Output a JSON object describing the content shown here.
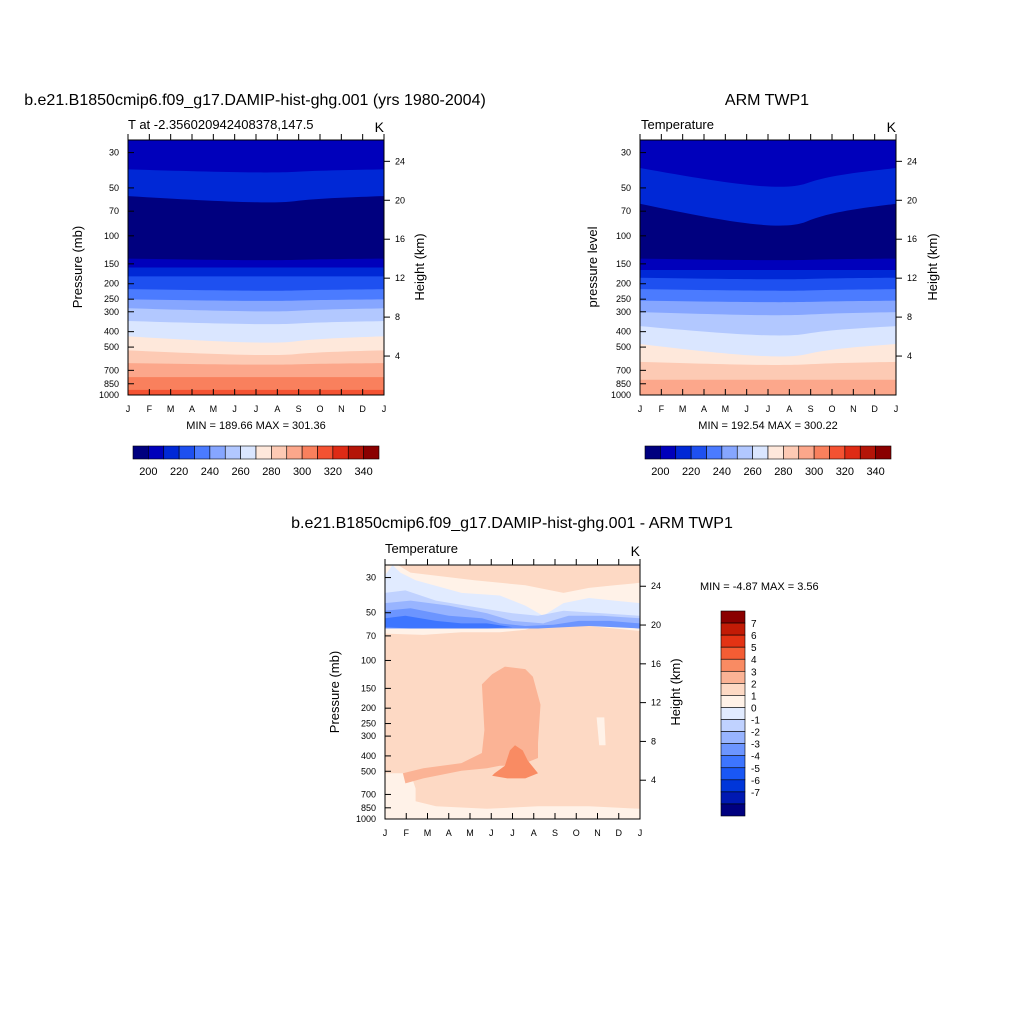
{
  "palette": {
    "temp_colors": [
      "#00007f",
      "#0000bb",
      "#0028d6",
      "#1e50f0",
      "#4b7bff",
      "#86a6ff",
      "#b2c8ff",
      "#dae6ff",
      "#fee8db",
      "#fdcab4",
      "#fca78b",
      "#f9805d",
      "#f45232",
      "#de2b15",
      "#b41508",
      "#8a0000"
    ],
    "diff_colors": [
      "#00007f",
      "#0019b2",
      "#0036d9",
      "#1957f5",
      "#3d75ff",
      "#6c95ff",
      "#98b4ff",
      "#c0d2ff",
      "#e1ebff",
      "#fff2e8",
      "#fdd9c4",
      "#fbb395",
      "#f98b63",
      "#f45d34",
      "#e33314",
      "#c21b06",
      "#8a0000"
    ]
  },
  "chart_data": [
    {
      "type": "heatmap",
      "panel": "model",
      "title": "b.e21.B1850cmip6.f09_g17.DAMIP-hist-ghg.001 (yrs 1980-2004)",
      "subtitle_left": "T at -2.356020942408378,147.5",
      "subtitle_right": "K",
      "ylabel": "Pressure (mb)",
      "ylabel_right": "Height (km)",
      "months": [
        "J",
        "F",
        "M",
        "A",
        "M",
        "J",
        "J",
        "A",
        "S",
        "O",
        "N",
        "D",
        "J"
      ],
      "pressure_ticks": [
        30,
        50,
        70,
        100,
        150,
        200,
        250,
        300,
        400,
        500,
        700,
        850,
        1000
      ],
      "height_ticks": [
        4,
        8,
        12,
        16,
        20,
        24
      ],
      "ylim": [
        25,
        1000
      ],
      "stats": "MIN = 189.66 MAX = 301.36",
      "colorbar_labels": [
        "200",
        "220",
        "240",
        "260",
        "280",
        "300",
        "320",
        "340"
      ],
      "levels": [
        [
          0.0,
          0.0,
          1
        ],
        [
          0.115,
          0.125,
          2
        ],
        [
          0.22,
          0.24,
          0
        ],
        [
          0.465,
          0.47,
          1
        ],
        [
          0.5,
          0.5,
          2
        ],
        [
          0.535,
          0.535,
          3
        ],
        [
          0.585,
          0.59,
          4
        ],
        [
          0.625,
          0.63,
          5
        ],
        [
          0.66,
          0.67,
          6
        ],
        [
          0.71,
          0.72,
          7
        ],
        [
          0.77,
          0.79,
          8
        ],
        [
          0.825,
          0.84,
          9
        ],
        [
          0.875,
          0.88,
          10
        ],
        [
          0.93,
          0.93,
          11
        ],
        [
          0.98,
          0.98,
          12
        ]
      ]
    },
    {
      "type": "heatmap",
      "panel": "obs",
      "title": "ARM TWP1",
      "subtitle_left": "Temperature",
      "subtitle_right": "K",
      "ylabel": "pressure level",
      "ylabel_right": "Height (km)",
      "months": [
        "J",
        "F",
        "M",
        "A",
        "M",
        "J",
        "J",
        "A",
        "S",
        "O",
        "N",
        "D",
        "J"
      ],
      "pressure_ticks": [
        30,
        50,
        70,
        100,
        150,
        200,
        250,
        300,
        400,
        500,
        700,
        850,
        1000
      ],
      "height_ticks": [
        4,
        8,
        12,
        16,
        20,
        24
      ],
      "ylim": [
        25,
        1000
      ],
      "stats": "MIN = 192.54 MAX = 300.22",
      "colorbar_labels": [
        "200",
        "220",
        "240",
        "260",
        "280",
        "300",
        "320",
        "340"
      ],
      "levels": [
        [
          0.0,
          0.0,
          1
        ],
        [
          0.11,
          0.17,
          2
        ],
        [
          0.25,
          0.32,
          0
        ],
        [
          0.465,
          0.47,
          1
        ],
        [
          0.51,
          0.51,
          2
        ],
        [
          0.54,
          0.545,
          3
        ],
        [
          0.585,
          0.59,
          4
        ],
        [
          0.63,
          0.635,
          5
        ],
        [
          0.675,
          0.685,
          6
        ],
        [
          0.73,
          0.76,
          7
        ],
        [
          0.8,
          0.84,
          8
        ],
        [
          0.87,
          0.88,
          9
        ],
        [
          0.94,
          0.94,
          10
        ]
      ]
    },
    {
      "type": "heatmap",
      "panel": "diff",
      "title": "b.e21.B1850cmip6.f09_g17.DAMIP-hist-ghg.001 - ARM TWP1",
      "subtitle_left": "Temperature",
      "subtitle_right": "K",
      "ylabel": "Pressure (mb)",
      "ylabel_right": "Height (km)",
      "months": [
        "J",
        "F",
        "M",
        "A",
        "M",
        "J",
        "J",
        "A",
        "S",
        "O",
        "N",
        "D",
        "J"
      ],
      "pressure_ticks": [
        30,
        50,
        70,
        100,
        150,
        200,
        250,
        300,
        400,
        500,
        700,
        850,
        1000
      ],
      "height_ticks": [
        4,
        8,
        12,
        16,
        20,
        24
      ],
      "ylim": [
        25,
        1000
      ],
      "stats": "MIN =  -4.87 MAX =   3.56",
      "colorbar_labels": [
        "7",
        "6",
        "5",
        "4",
        "3",
        "2",
        "1",
        "0",
        "-1",
        "-2",
        "-3",
        "-4",
        "-5",
        "-6",
        "-7"
      ],
      "shapes": [
        {
          "c": 10,
          "pts": [
            [
              0,
              0
            ],
            [
              1,
              0
            ],
            [
              1,
              1
            ],
            [
              0,
              1
            ]
          ]
        },
        {
          "c": 9,
          "pts": [
            [
              0,
              0
            ],
            [
              0.05,
              0
            ],
            [
              0.1,
              0.03
            ],
            [
              0.35,
              0.06
            ],
            [
              0.55,
              0.08
            ],
            [
              0.7,
              0.11
            ],
            [
              0.8,
              0.09
            ],
            [
              0.9,
              0.08
            ],
            [
              1,
              0.07
            ],
            [
              1,
              0.26
            ],
            [
              0.9,
              0.25
            ],
            [
              0.8,
              0.24
            ],
            [
              0.7,
              0.22
            ],
            [
              0.6,
              0.24
            ],
            [
              0.55,
              0.255
            ],
            [
              0.45,
              0.265
            ],
            [
              0.3,
              0.265
            ],
            [
              0.15,
              0.275
            ],
            [
              0,
              0.27
            ]
          ]
        },
        {
          "c": 9,
          "pts": [
            [
              0,
              0.82
            ],
            [
              0.1,
              0.82
            ],
            [
              0.12,
              0.88
            ],
            [
              0.12,
              0.93
            ],
            [
              0.2,
              0.95
            ],
            [
              0.4,
              0.96
            ],
            [
              0.6,
              0.95
            ],
            [
              0.8,
              0.95
            ],
            [
              1,
              0.96
            ],
            [
              1,
              1
            ],
            [
              0,
              1
            ]
          ]
        },
        {
          "c": 9,
          "pts": [
            [
              0.83,
              0.6
            ],
            [
              0.86,
              0.6
            ],
            [
              0.865,
              0.71
            ],
            [
              0.84,
              0.71
            ]
          ]
        },
        {
          "c": 8,
          "pts": [
            [
              0.0,
              0.04
            ],
            [
              0.03,
              0.0
            ],
            [
              0.06,
              0.03
            ],
            [
              0.12,
              0.06
            ],
            [
              0.3,
              0.11
            ],
            [
              0.45,
              0.12
            ],
            [
              0.55,
              0.16
            ],
            [
              0.62,
              0.2
            ],
            [
              0.7,
              0.15
            ],
            [
              0.8,
              0.13
            ],
            [
              0.9,
              0.14
            ],
            [
              1,
              0.15
            ],
            [
              1,
              0.25
            ],
            [
              0.85,
              0.22
            ],
            [
              0.7,
              0.21
            ],
            [
              0.62,
              0.23
            ],
            [
              0.5,
              0.25
            ],
            [
              0.3,
              0.25
            ],
            [
              0,
              0.22
            ]
          ]
        },
        {
          "c": 7,
          "pts": [
            [
              0.0,
              0.11
            ],
            [
              0.08,
              0.1
            ],
            [
              0.2,
              0.14
            ],
            [
              0.38,
              0.17
            ],
            [
              0.5,
              0.19
            ],
            [
              0.6,
              0.2
            ],
            [
              0.7,
              0.18
            ],
            [
              0.85,
              0.19
            ],
            [
              1,
              0.2
            ],
            [
              1,
              0.24
            ],
            [
              0.75,
              0.22
            ],
            [
              0.62,
              0.23
            ],
            [
              0.4,
              0.24
            ],
            [
              0.15,
              0.245
            ],
            [
              0,
              0.24
            ]
          ]
        },
        {
          "c": 6,
          "pts": [
            [
              0.0,
              0.15
            ],
            [
              0.1,
              0.14
            ],
            [
              0.25,
              0.16
            ],
            [
              0.4,
              0.19
            ],
            [
              0.5,
              0.22
            ],
            [
              0.62,
              0.23
            ],
            [
              0.72,
              0.2
            ],
            [
              0.85,
              0.2
            ],
            [
              1,
              0.21
            ],
            [
              1,
              0.25
            ],
            [
              0.8,
              0.23
            ],
            [
              0.62,
              0.245
            ],
            [
              0.45,
              0.25
            ],
            [
              0.3,
              0.245
            ],
            [
              0.15,
              0.25
            ],
            [
              0,
              0.25
            ]
          ]
        },
        {
          "c": 5,
          "pts": [
            [
              0.0,
              0.18
            ],
            [
              0.1,
              0.17
            ],
            [
              0.25,
              0.2
            ],
            [
              0.38,
              0.21
            ],
            [
              0.45,
              0.23
            ],
            [
              0.55,
              0.24
            ],
            [
              0.66,
              0.235
            ],
            [
              0.76,
              0.22
            ],
            [
              0.88,
              0.22
            ],
            [
              1,
              0.23
            ],
            [
              1,
              0.25
            ],
            [
              0.8,
              0.24
            ],
            [
              0.6,
              0.25
            ],
            [
              0.4,
              0.25
            ],
            [
              0.2,
              0.25
            ],
            [
              0,
              0.25
            ]
          ]
        },
        {
          "c": 4,
          "pts": [
            [
              0.0,
              0.21
            ],
            [
              0.08,
              0.2
            ],
            [
              0.2,
              0.22
            ],
            [
              0.3,
              0.23
            ],
            [
              0.4,
              0.23
            ],
            [
              0.5,
              0.245
            ],
            [
              0.4,
              0.25
            ],
            [
              0.25,
              0.25
            ],
            [
              0.1,
              0.25
            ],
            [
              0,
              0.245
            ]
          ]
        },
        {
          "c": 11,
          "pts": [
            [
              0.38,
              0.47
            ],
            [
              0.42,
              0.43
            ],
            [
              0.47,
              0.4
            ],
            [
              0.55,
              0.41
            ],
            [
              0.58,
              0.44
            ],
            [
              0.61,
              0.55
            ],
            [
              0.6,
              0.7
            ],
            [
              0.6,
              0.76
            ],
            [
              0.55,
              0.78
            ],
            [
              0.5,
              0.79
            ],
            [
              0.45,
              0.79
            ],
            [
              0.4,
              0.8
            ],
            [
              0.3,
              0.81
            ],
            [
              0.15,
              0.84
            ],
            [
              0.08,
              0.86
            ],
            [
              0.07,
              0.82
            ],
            [
              0.15,
              0.8
            ],
            [
              0.3,
              0.78
            ],
            [
              0.38,
              0.74
            ],
            [
              0.39,
              0.65
            ]
          ]
        },
        {
          "c": 12,
          "pts": [
            [
              0.43,
              0.82
            ],
            [
              0.47,
              0.79
            ],
            [
              0.49,
              0.73
            ],
            [
              0.51,
              0.71
            ],
            [
              0.54,
              0.73
            ],
            [
              0.56,
              0.77
            ],
            [
              0.6,
              0.82
            ],
            [
              0.55,
              0.84
            ],
            [
              0.48,
              0.84
            ],
            [
              0.42,
              0.83
            ]
          ]
        }
      ],
      "colorbar_levels": 17
    }
  ]
}
